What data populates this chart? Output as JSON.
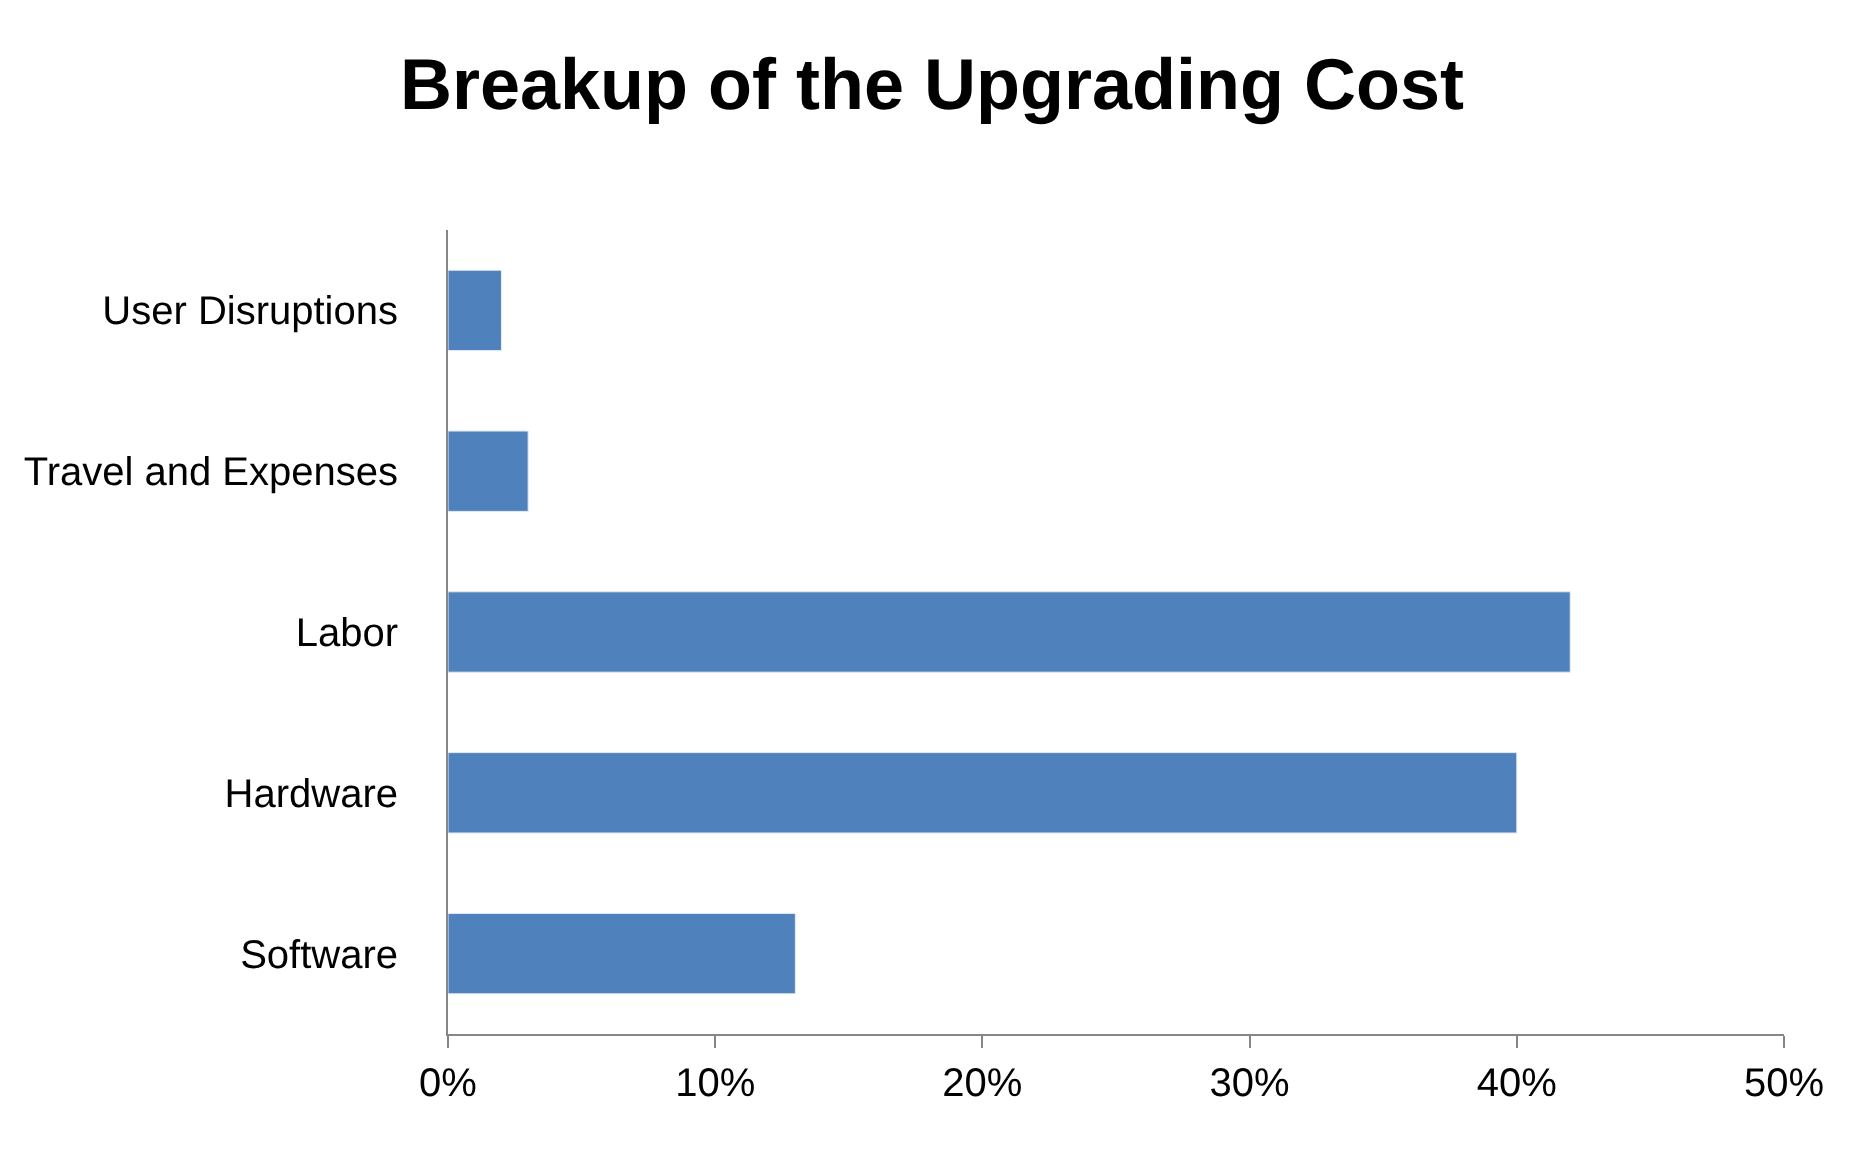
{
  "chart_data": {
    "type": "bar",
    "orientation": "horizontal",
    "title": "Breakup of the Upgrading Cost",
    "categories": [
      "User Disruptions",
      "Travel and Expenses",
      "Labor",
      "Hardware",
      "Software"
    ],
    "values": [
      2,
      3,
      42,
      40,
      13
    ],
    "color": "#4f81bd",
    "xlim": [
      0,
      50
    ],
    "xticks": [
      {
        "value": 0,
        "label": "0%"
      },
      {
        "value": 10,
        "label": "10%"
      },
      {
        "value": 20,
        "label": "20%"
      },
      {
        "value": 30,
        "label": "30%"
      },
      {
        "value": 40,
        "label": "40%"
      },
      {
        "value": 50,
        "label": "50%"
      }
    ],
    "grid": false,
    "legend": false
  }
}
